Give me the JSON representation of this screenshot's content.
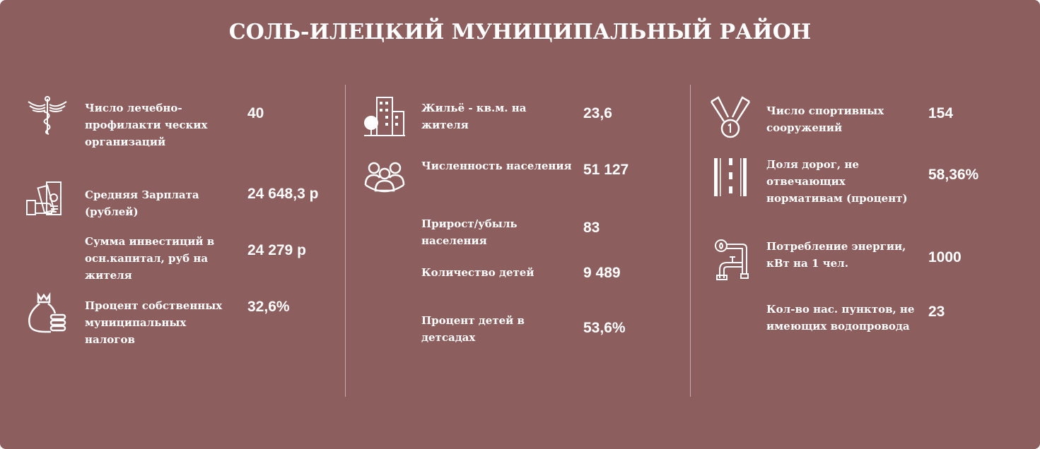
{
  "title": "СОЛЬ-ИЛЕЦКИЙ МУНИЦИПАЛЬНЫЙ РАЙОН",
  "colors": {
    "background": "#8c5f5e",
    "text": "#ffffff"
  },
  "columns": [
    {
      "items": [
        {
          "icon": "caduceus-icon",
          "label": "Число лечебно-профилакти ческих организаций",
          "value": "40"
        },
        {
          "icon": "salary-hand-money-icon",
          "label": "Средняя Зарплата (рублей)",
          "value": "24 648,3 р"
        },
        {
          "icon": "",
          "label": "Сумма инвестиций в осн.капитал, руб на жителя",
          "value": "24 279 р"
        },
        {
          "icon": "money-bag-coins-icon",
          "label": "Процент собственных муниципальных налогов",
          "value": "32,6%"
        }
      ]
    },
    {
      "items": [
        {
          "icon": "buildings-tree-icon",
          "label": "Жильё - кв.м. на жителя",
          "value": "23,6"
        },
        {
          "icon": "people-group-icon",
          "label": "Численность населения",
          "value": "51 127"
        },
        {
          "icon": "",
          "label": "Прирост/убыль населения",
          "value": "83"
        },
        {
          "icon": "",
          "label": "Количество детей",
          "value": "9 489"
        },
        {
          "icon": "",
          "label": "Процент детей в детсадах",
          "value": "53,6%"
        }
      ]
    },
    {
      "items": [
        {
          "icon": "medal-icon",
          "label": "Число спортивных сооружений",
          "value": "154"
        },
        {
          "icon": "road-icon",
          "label": "Доля дорог, не отвечающих нормативам (процент)",
          "value": "58,36%"
        },
        {
          "icon": "pipes-icon",
          "label": "Потребление энергии, кВт на 1 чел.",
          "value": "1000"
        },
        {
          "icon": "",
          "label": "Кол-во нас. пунктов, не имеющих водопровода",
          "value": "23"
        }
      ]
    }
  ]
}
